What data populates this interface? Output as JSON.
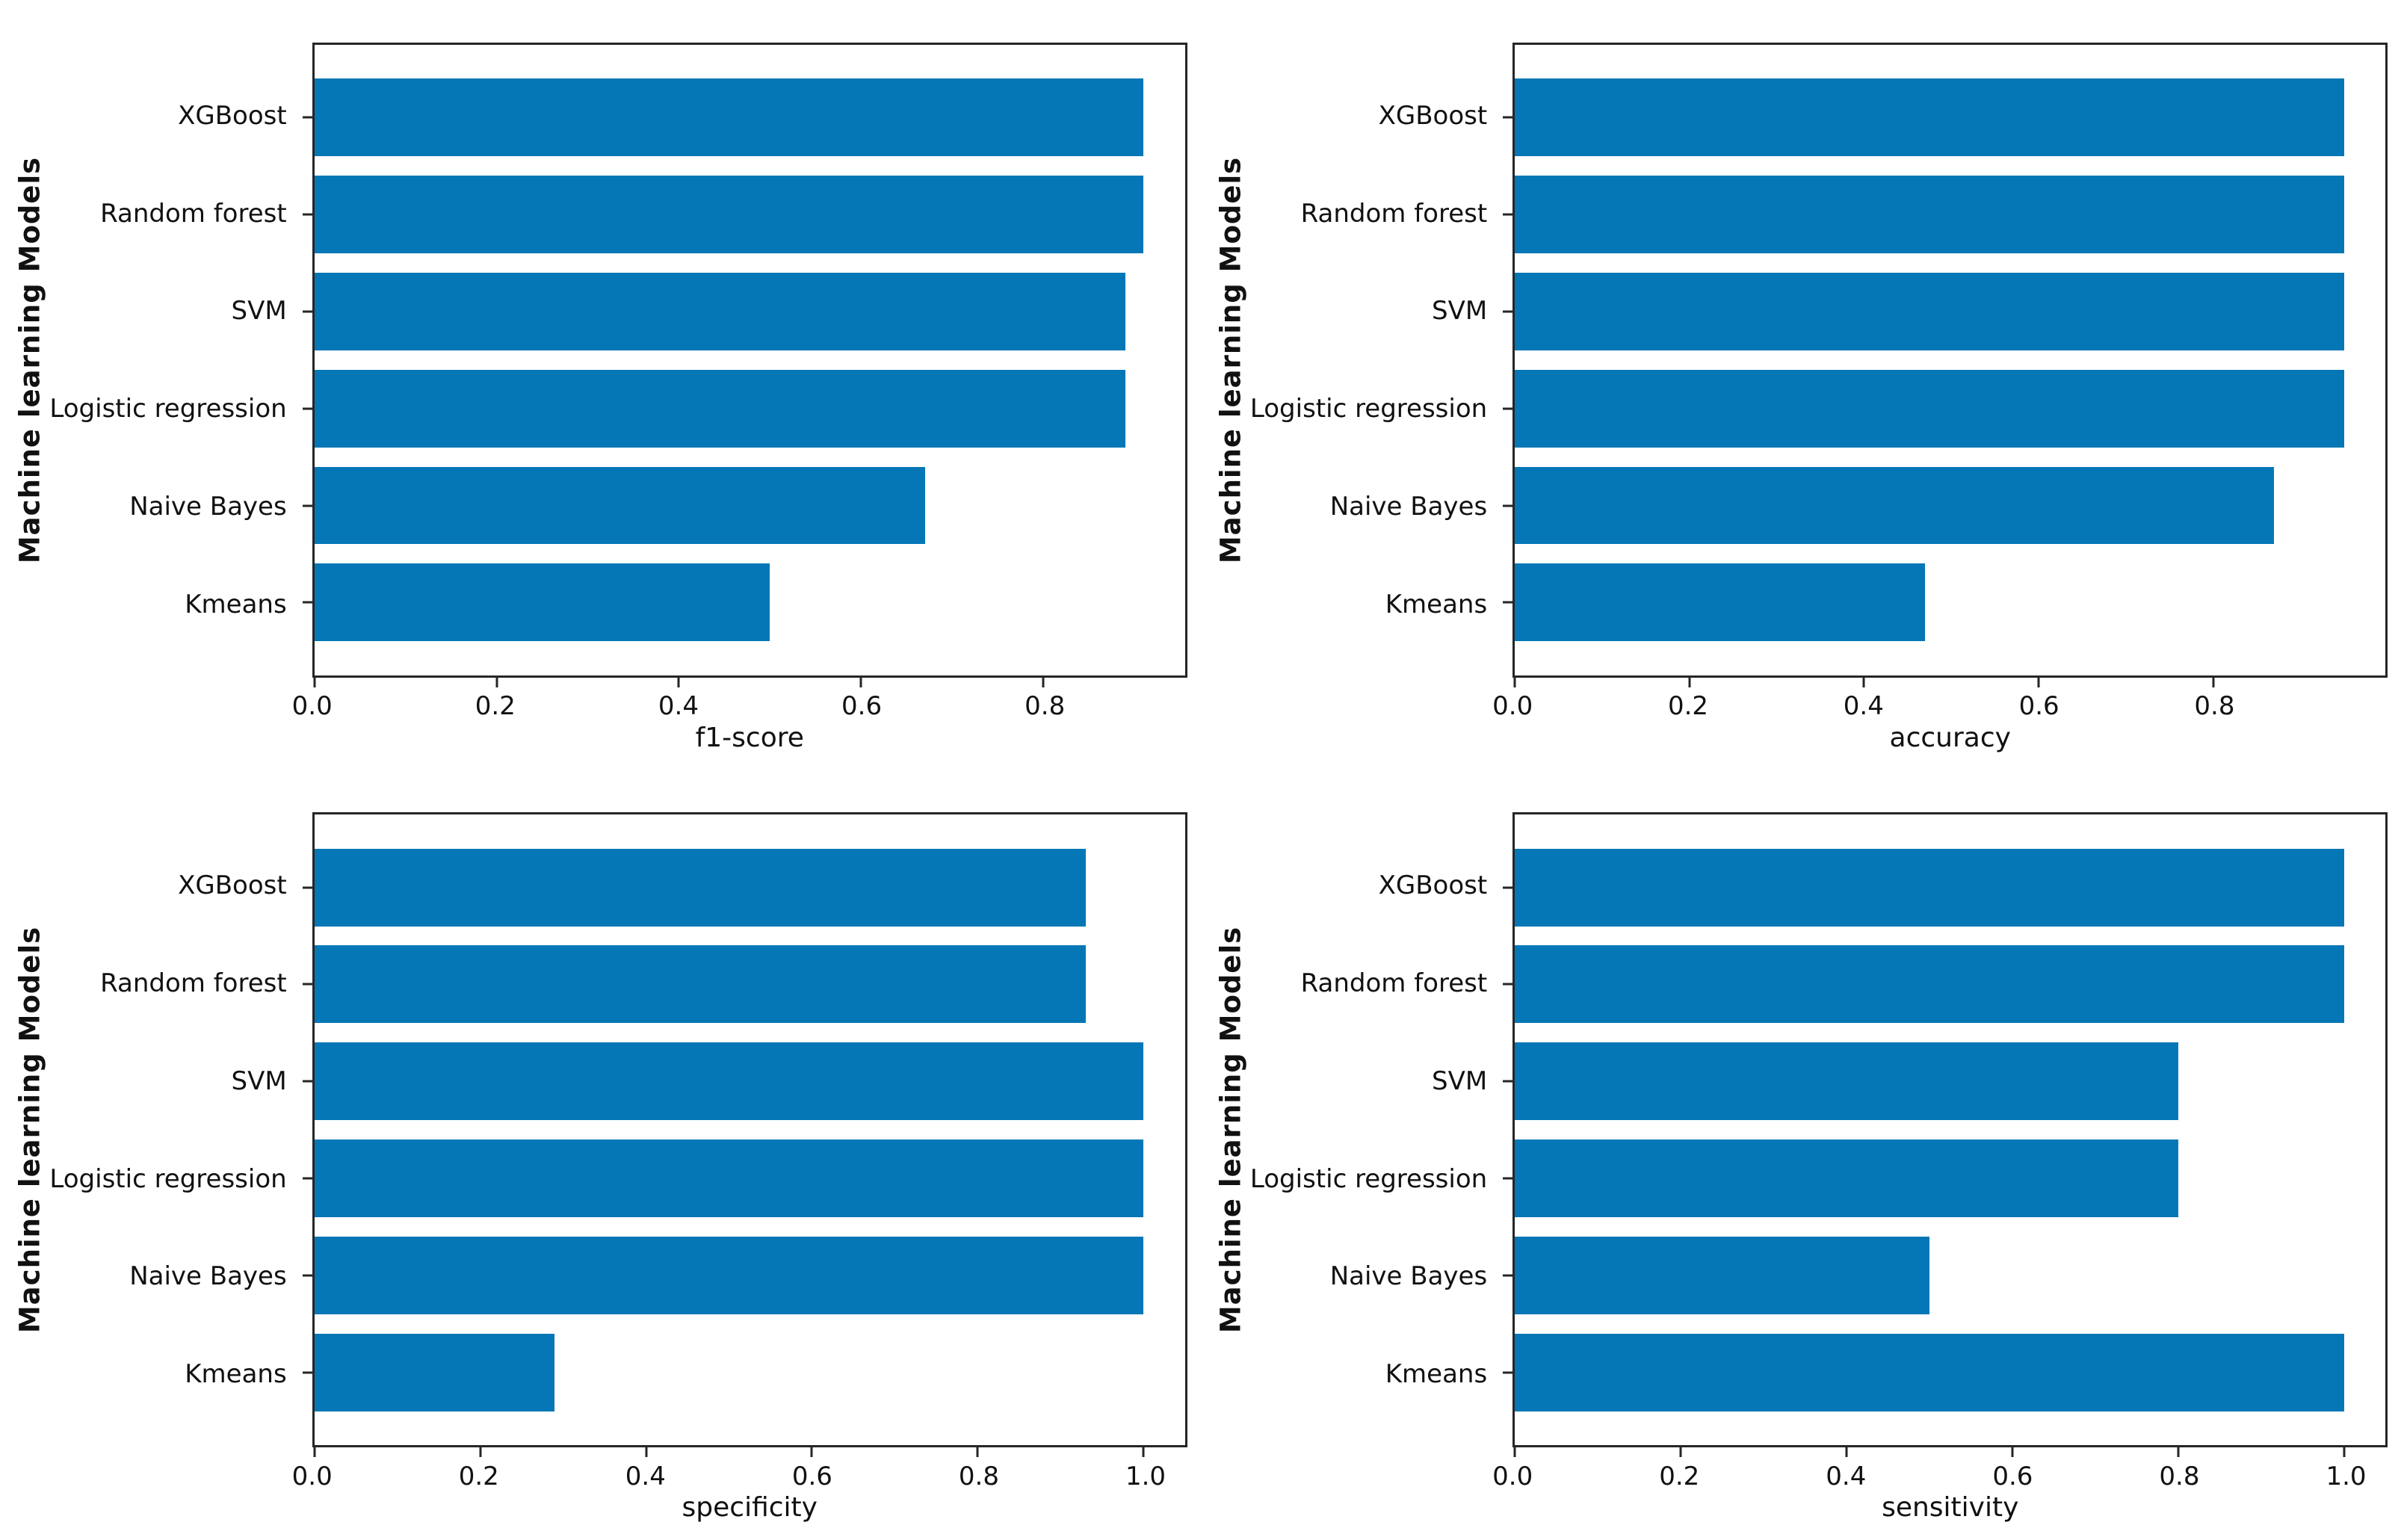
{
  "figure": {
    "background": "#ffffff",
    "bar_color": "#0577b6",
    "spine_color": "#262626",
    "text_color": "#111111"
  },
  "chart_data": [
    {
      "type": "bar",
      "orientation": "horizontal",
      "xlabel": "f1-score",
      "ylabel": "Machine learning Models",
      "categories": [
        "XGBoost",
        "Random forest",
        "SVM",
        "Logistic regression",
        "Naive Bayes",
        "Kmeans"
      ],
      "values": [
        0.91,
        0.91,
        0.89,
        0.89,
        0.67,
        0.5
      ],
      "xticks": [
        0.0,
        0.2,
        0.4,
        0.6,
        0.8
      ],
      "xlim": [
        0,
        0.9555
      ],
      "grid": false,
      "legend": "none"
    },
    {
      "type": "bar",
      "orientation": "horizontal",
      "xlabel": "accuracy",
      "ylabel": "Machine learning Models",
      "categories": [
        "XGBoost",
        "Random forest",
        "SVM",
        "Logistic regression",
        "Naive Bayes",
        "Kmeans"
      ],
      "values": [
        0.95,
        0.95,
        0.95,
        0.95,
        0.87,
        0.47
      ],
      "xticks": [
        0.0,
        0.2,
        0.4,
        0.6,
        0.8
      ],
      "xlim": [
        0,
        0.9975
      ],
      "grid": false,
      "legend": "none"
    },
    {
      "type": "bar",
      "orientation": "horizontal",
      "xlabel": "specificity",
      "ylabel": "Machine learning Models",
      "categories": [
        "XGBoost",
        "Random forest",
        "SVM",
        "Logistic regression",
        "Naive Bayes",
        "Kmeans"
      ],
      "values": [
        0.93,
        0.93,
        1.0,
        1.0,
        1.0,
        0.29
      ],
      "xticks": [
        0.0,
        0.2,
        0.4,
        0.6,
        0.8,
        1.0
      ],
      "xlim": [
        0,
        1.05
      ],
      "grid": false,
      "legend": "none"
    },
    {
      "type": "bar",
      "orientation": "horizontal",
      "xlabel": "sensitivity",
      "ylabel": "Machine learning Models",
      "categories": [
        "XGBoost",
        "Random forest",
        "SVM",
        "Logistic regression",
        "Naive Bayes",
        "Kmeans"
      ],
      "values": [
        1.0,
        1.0,
        0.8,
        0.8,
        0.5,
        1.0
      ],
      "xticks": [
        0.0,
        0.2,
        0.4,
        0.6,
        0.8,
        1.0
      ],
      "xlim": [
        0,
        1.05
      ],
      "grid": false,
      "legend": "none"
    }
  ]
}
